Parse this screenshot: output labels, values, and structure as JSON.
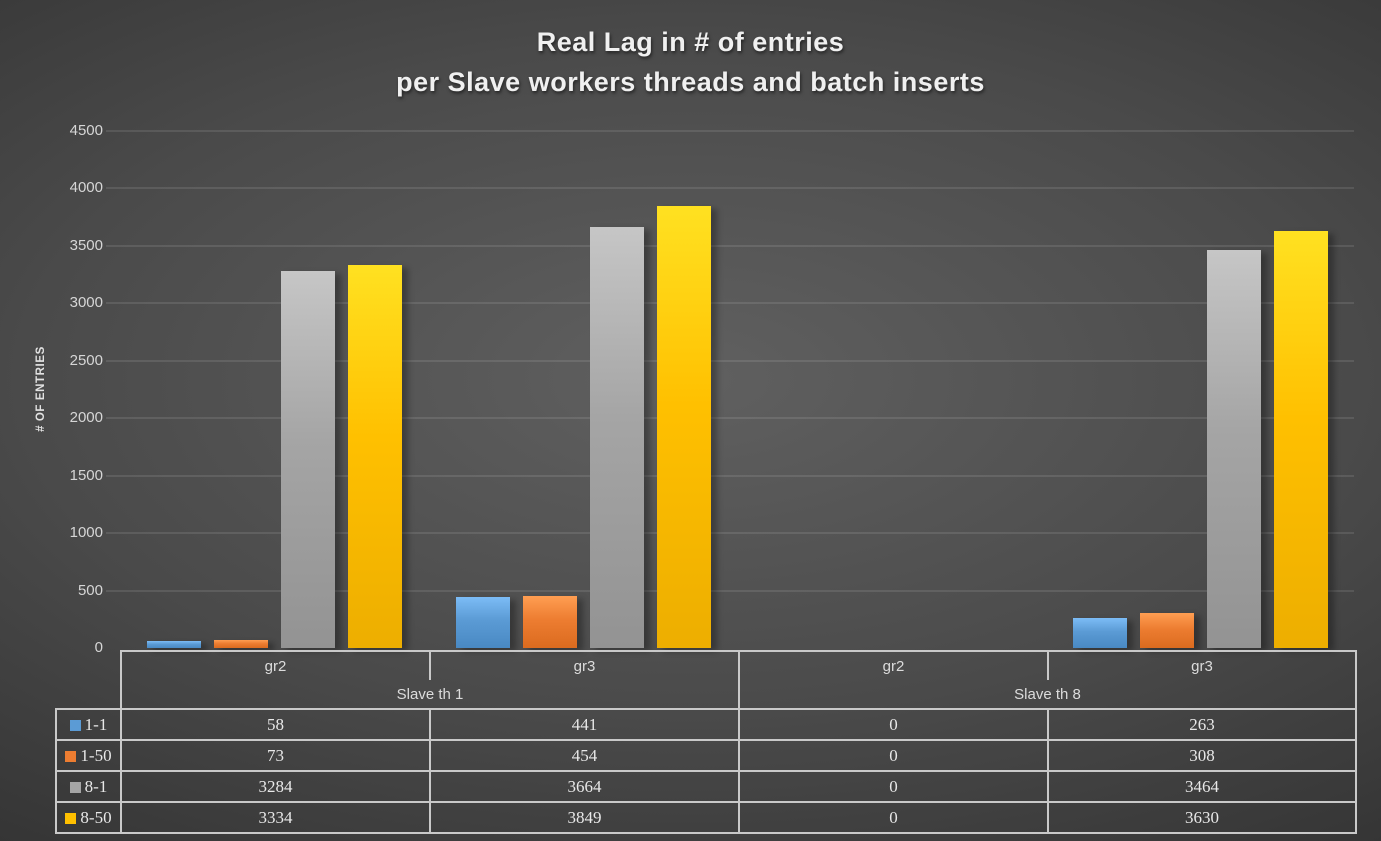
{
  "title": {
    "line1": "Real Lag in # of entries",
    "line2": "per Slave workers threads and batch inserts"
  },
  "chart_data": {
    "type": "bar",
    "title": "Real Lag in # of entries per Slave workers threads and batch inserts",
    "xlabel": "",
    "ylabel": "# OF ENTRIES",
    "ylim": [
      0,
      4500
    ],
    "ytick_step": 500,
    "grid": true,
    "legend_position": "data-table-left",
    "categories": [
      "gr2",
      "gr3",
      "gr2",
      "gr3"
    ],
    "category_groups": [
      {
        "label": "Slave th 1",
        "span": 2
      },
      {
        "label": "Slave th 8",
        "span": 2
      }
    ],
    "series": [
      {
        "name": "1-1",
        "color": "#5B9BD5",
        "values": [
          58,
          441,
          0,
          263
        ]
      },
      {
        "name": "1-50",
        "color": "#ED7D31",
        "values": [
          73,
          454,
          0,
          308
        ]
      },
      {
        "name": "8-1",
        "color": "#A5A5A5",
        "values": [
          3284,
          3664,
          0,
          3464
        ]
      },
      {
        "name": "8-50",
        "color": "#FFC000",
        "values": [
          3334,
          3849,
          0,
          3630
        ]
      }
    ]
  }
}
